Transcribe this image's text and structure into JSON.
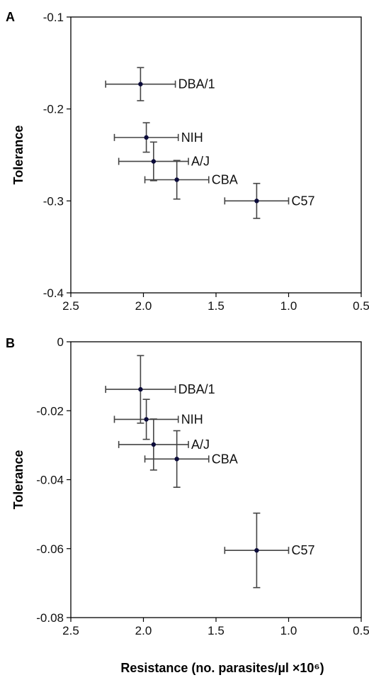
{
  "chart_data": [
    {
      "type": "scatter",
      "panel_label": "A",
      "title": "",
      "xlabel": "",
      "ylabel": "Tolerance",
      "xlim": [
        2.5,
        0.5
      ],
      "ylim": [
        -0.4,
        -0.1
      ],
      "x_reversed": true,
      "xticks": [
        "2.5",
        "2.0",
        "1.5",
        "1.0",
        "0.5"
      ],
      "yticks": [
        "-0.1",
        "-0.2",
        "-0.3",
        "-0.4"
      ],
      "grid": false,
      "points": [
        {
          "label": "DBA/1",
          "x": 2.02,
          "y": -0.173,
          "xerr": 0.24,
          "yerr": 0.018
        },
        {
          "label": "NIH",
          "x": 1.98,
          "y": -0.231,
          "xerr": 0.22,
          "yerr": 0.016
        },
        {
          "label": "A/J",
          "x": 1.93,
          "y": -0.257,
          "xerr": 0.24,
          "yerr": 0.021
        },
        {
          "label": "CBA",
          "x": 1.77,
          "y": -0.277,
          "xerr": 0.22,
          "yerr": 0.021
        },
        {
          "label": "C57",
          "x": 1.22,
          "y": -0.3,
          "xerr": 0.22,
          "yerr": 0.019
        }
      ]
    },
    {
      "type": "scatter",
      "panel_label": "B",
      "title": "",
      "xlabel": "Resistance (no. parasites/µl ×10⁶)",
      "ylabel": "Tolerance",
      "xlim": [
        2.5,
        0.5
      ],
      "ylim": [
        -0.08,
        0
      ],
      "x_reversed": true,
      "xticks": [
        "2.5",
        "2.0",
        "1.5",
        "1.0",
        "0.5"
      ],
      "yticks": [
        "0",
        "-0.02",
        "-0.04",
        "-0.06",
        "-0.08"
      ],
      "grid": false,
      "points": [
        {
          "label": "DBA/1",
          "x": 2.02,
          "y": -0.0138,
          "xerr": 0.24,
          "yerr": 0.0098
        },
        {
          "label": "NIH",
          "x": 1.98,
          "y": -0.0225,
          "xerr": 0.22,
          "yerr": 0.0058
        },
        {
          "label": "A/J",
          "x": 1.93,
          "y": -0.0298,
          "xerr": 0.24,
          "yerr": 0.0074
        },
        {
          "label": "CBA",
          "x": 1.77,
          "y": -0.034,
          "xerr": 0.22,
          "yerr": 0.0082
        },
        {
          "label": "C57",
          "x": 1.22,
          "y": -0.0605,
          "xerr": 0.22,
          "yerr": 0.0108
        }
      ]
    }
  ],
  "colors": {
    "marker": "#0b0b3a",
    "error_bar": "#444444",
    "frame": "#000000"
  }
}
